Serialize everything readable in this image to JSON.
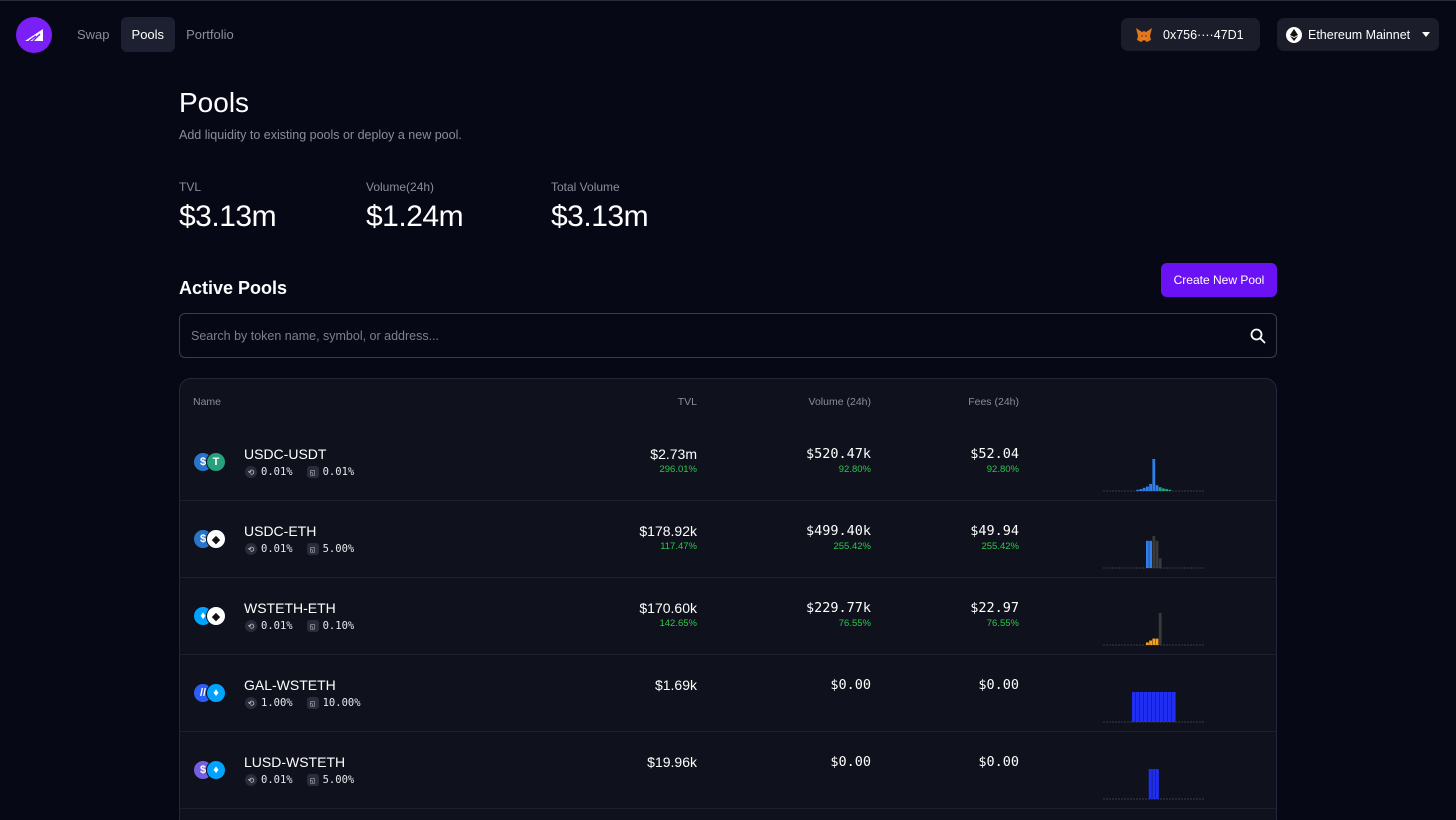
{
  "nav": {
    "items": [
      {
        "label": "Swap",
        "active": false
      },
      {
        "label": "Pools",
        "active": true
      },
      {
        "label": "Portfolio",
        "active": false
      }
    ]
  },
  "wallet": {
    "address": "0x756····47D1",
    "icon": "metamask-fox-icon"
  },
  "network": {
    "label": "Ethereum Mainnet",
    "icon": "ethereum-icon"
  },
  "header": {
    "title": "Pools",
    "subtitle": "Add liquidity to existing pools or deploy a new pool."
  },
  "stats": [
    {
      "label": "TVL",
      "value": "$3.13m"
    },
    {
      "label": "Volume(24h)",
      "value": "$1.24m"
    },
    {
      "label": "Total Volume",
      "value": "$3.13m"
    }
  ],
  "active_pools": {
    "title": "Active Pools",
    "create_label": "Create New Pool",
    "search_placeholder": "Search by token name, symbol, or address..."
  },
  "table": {
    "columns": {
      "name": "Name",
      "tvl": "TVL",
      "volume": "Volume (24h)",
      "fees": "Fees (24h)"
    },
    "rows": [
      {
        "name": "USDC-USDT",
        "fee": "0.01%",
        "range": "0.01%",
        "tvl": "$2.73m",
        "tvl_pct": "296.01%",
        "volume": "$520.47k",
        "volume_pct": "92.80%",
        "fees": "$52.04",
        "fees_pct": "92.80%",
        "tokens": [
          {
            "color": "#2775ca",
            "glyph": "$"
          },
          {
            "color": "#26a17b",
            "glyph": "T"
          }
        ]
      },
      {
        "name": "USDC-ETH",
        "fee": "0.01%",
        "range": "5.00%",
        "tvl": "$178.92k",
        "tvl_pct": "117.47%",
        "volume": "$499.40k",
        "volume_pct": "255.42%",
        "fees": "$49.94",
        "fees_pct": "255.42%",
        "tokens": [
          {
            "color": "#2775ca",
            "glyph": "$"
          },
          {
            "color": "#ffffff",
            "glyph": "◆"
          }
        ]
      },
      {
        "name": "WSTETH-ETH",
        "fee": "0.01%",
        "range": "0.10%",
        "tvl": "$170.60k",
        "tvl_pct": "142.65%",
        "volume": "$229.77k",
        "volume_pct": "76.55%",
        "fees": "$22.97",
        "fees_pct": "76.55%",
        "tokens": [
          {
            "color": "#00a3ff",
            "glyph": "♦"
          },
          {
            "color": "#ffffff",
            "glyph": "◆"
          }
        ]
      },
      {
        "name": "GAL-WSTETH",
        "fee": "1.00%",
        "range": "10.00%",
        "tvl": "$1.69k",
        "tvl_pct": "",
        "volume": "$0.00",
        "volume_pct": "",
        "fees": "$0.00",
        "fees_pct": "",
        "tokens": [
          {
            "color": "#2d5cf6",
            "glyph": "//"
          },
          {
            "color": "#00a3ff",
            "glyph": "♦"
          }
        ]
      },
      {
        "name": "LUSD-WSTETH",
        "fee": "0.01%",
        "range": "5.00%",
        "tvl": "$19.96k",
        "tvl_pct": "",
        "volume": "$0.00",
        "volume_pct": "",
        "fees": "$0.00",
        "fees_pct": "",
        "tokens": [
          {
            "color": "#745ddf",
            "glyph": "$"
          },
          {
            "color": "#00a3ff",
            "glyph": "♦"
          }
        ]
      }
    ]
  },
  "liquidity_distributions": [
    {
      "bins": [
        {
          "v": 0.04,
          "c": "#2f80ed"
        },
        {
          "v": 0.06,
          "c": "#2f80ed"
        },
        {
          "v": 0.1,
          "c": "#2f80ed"
        },
        {
          "v": 0.14,
          "c": "#2f80ed"
        },
        {
          "v": 0.22,
          "c": "#2f80ed"
        },
        {
          "v": 1.0,
          "c": "#2f80ed"
        },
        {
          "v": 0.18,
          "c": "#2f80ed"
        },
        {
          "v": 0.12,
          "c": "#26a17b"
        },
        {
          "v": 0.08,
          "c": "#26a17b"
        },
        {
          "v": 0.06,
          "c": "#26a17b"
        },
        {
          "v": 0.04,
          "c": "#26a17b"
        }
      ]
    },
    {
      "bins": [
        {
          "v": 0.85,
          "c": "#2f80ed"
        },
        {
          "v": 0.85,
          "c": "#2f80ed"
        },
        {
          "v": 1.0,
          "c": "#3a3a3a"
        },
        {
          "v": 0.85,
          "c": "#3a3a3a"
        },
        {
          "v": 0.3,
          "c": "#3a3a3a"
        }
      ]
    },
    {
      "bins": [
        {
          "v": 0.08,
          "c": "#f7a21b"
        },
        {
          "v": 0.14,
          "c": "#f7a21b"
        },
        {
          "v": 0.2,
          "c": "#f7a21b"
        },
        {
          "v": 0.2,
          "c": "#f7a21b"
        },
        {
          "v": 1.0,
          "c": "#3a3a3a"
        }
      ]
    },
    {
      "bins": [
        {
          "v": 1.0,
          "c": "#1f2ef0"
        },
        {
          "v": 1.0,
          "c": "#1f2ef0"
        },
        {
          "v": 1.0,
          "c": "#1f2ef0"
        },
        {
          "v": 1.0,
          "c": "#1f2ef0"
        },
        {
          "v": 1.0,
          "c": "#1f2ef0"
        },
        {
          "v": 1.0,
          "c": "#1f2ef0"
        },
        {
          "v": 1.0,
          "c": "#1f2ef0"
        },
        {
          "v": 1.0,
          "c": "#1f2ef0"
        },
        {
          "v": 1.0,
          "c": "#1f2ef0"
        },
        {
          "v": 1.0,
          "c": "#1f2ef0"
        },
        {
          "v": 1.0,
          "c": "#1f2ef0"
        }
      ]
    },
    {
      "bins": [
        {
          "v": 1.0,
          "c": "#1f2ef0"
        },
        {
          "v": 1.0,
          "c": "#1f2ef0"
        },
        {
          "v": 1.0,
          "c": "#1f2ef0"
        }
      ]
    }
  ],
  "colors": {
    "accent": "#6b12f5",
    "positive": "#2bc94a",
    "background": "#070816"
  }
}
